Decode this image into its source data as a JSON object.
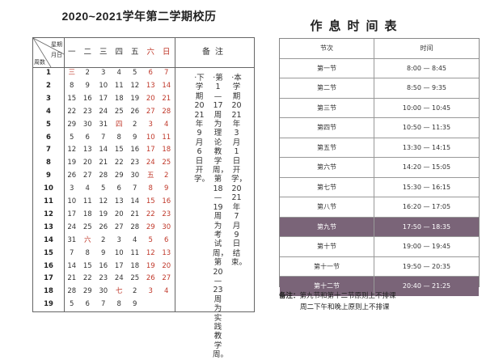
{
  "calendar": {
    "title": "2020~2021学年第二学期校历",
    "corner": {
      "weekday": "星期",
      "month": "月日",
      "week": "周数"
    },
    "weekdays": [
      {
        "label": "一",
        "red": false
      },
      {
        "label": "二",
        "red": false
      },
      {
        "label": "三",
        "red": false
      },
      {
        "label": "四",
        "red": false
      },
      {
        "label": "五",
        "red": false
      },
      {
        "label": "六",
        "red": true
      },
      {
        "label": "日",
        "red": true
      }
    ],
    "note_header": "备注",
    "weeks": [
      {
        "week": "1",
        "days": [
          "三",
          "2",
          "3",
          "4",
          "5",
          "6",
          "7"
        ],
        "red": [
          1,
          0,
          0,
          0,
          0,
          1,
          1
        ]
      },
      {
        "week": "2",
        "days": [
          "8",
          "9",
          "10",
          "11",
          "12",
          "13",
          "14"
        ],
        "red": [
          0,
          0,
          0,
          0,
          0,
          1,
          1
        ]
      },
      {
        "week": "3",
        "days": [
          "15",
          "16",
          "17",
          "18",
          "19",
          "20",
          "21"
        ],
        "red": [
          0,
          0,
          0,
          0,
          0,
          1,
          1
        ]
      },
      {
        "week": "4",
        "days": [
          "22",
          "23",
          "24",
          "25",
          "26",
          "27",
          "28"
        ],
        "red": [
          0,
          0,
          0,
          0,
          0,
          1,
          1
        ]
      },
      {
        "week": "5",
        "days": [
          "29",
          "30",
          "31",
          "四",
          "2",
          "3",
          "4"
        ],
        "red": [
          0,
          0,
          0,
          1,
          0,
          1,
          1
        ]
      },
      {
        "week": "6",
        "days": [
          "5",
          "6",
          "7",
          "8",
          "9",
          "10",
          "11"
        ],
        "red": [
          0,
          0,
          0,
          0,
          0,
          1,
          1
        ]
      },
      {
        "week": "7",
        "days": [
          "12",
          "13",
          "14",
          "15",
          "16",
          "17",
          "18"
        ],
        "red": [
          0,
          0,
          0,
          0,
          0,
          1,
          1
        ]
      },
      {
        "week": "8",
        "days": [
          "19",
          "20",
          "21",
          "22",
          "23",
          "24",
          "25"
        ],
        "red": [
          0,
          0,
          0,
          0,
          0,
          1,
          1
        ]
      },
      {
        "week": "9",
        "days": [
          "26",
          "27",
          "28",
          "29",
          "30",
          "五",
          "2"
        ],
        "red": [
          0,
          0,
          0,
          0,
          0,
          1,
          1
        ]
      },
      {
        "week": "10",
        "days": [
          "3",
          "4",
          "5",
          "6",
          "7",
          "8",
          "9"
        ],
        "red": [
          0,
          0,
          0,
          0,
          0,
          1,
          1
        ]
      },
      {
        "week": "11",
        "days": [
          "10",
          "11",
          "12",
          "13",
          "14",
          "15",
          "16"
        ],
        "red": [
          0,
          0,
          0,
          0,
          0,
          1,
          1
        ]
      },
      {
        "week": "12",
        "days": [
          "17",
          "18",
          "19",
          "20",
          "21",
          "22",
          "23"
        ],
        "red": [
          0,
          0,
          0,
          0,
          0,
          1,
          1
        ]
      },
      {
        "week": "13",
        "days": [
          "24",
          "25",
          "26",
          "27",
          "28",
          "29",
          "30"
        ],
        "red": [
          0,
          0,
          0,
          0,
          0,
          1,
          1
        ]
      },
      {
        "week": "14",
        "days": [
          "31",
          "六",
          "2",
          "3",
          "4",
          "5",
          "6"
        ],
        "red": [
          0,
          1,
          0,
          0,
          0,
          1,
          1
        ]
      },
      {
        "week": "15",
        "days": [
          "7",
          "8",
          "9",
          "10",
          "11",
          "12",
          "13"
        ],
        "red": [
          0,
          0,
          0,
          0,
          0,
          1,
          1
        ]
      },
      {
        "week": "16",
        "days": [
          "14",
          "15",
          "16",
          "17",
          "18",
          "19",
          "20"
        ],
        "red": [
          0,
          0,
          0,
          0,
          0,
          1,
          1
        ]
      },
      {
        "week": "17",
        "days": [
          "21",
          "22",
          "23",
          "24",
          "25",
          "26",
          "27"
        ],
        "red": [
          0,
          0,
          0,
          0,
          0,
          1,
          1
        ]
      },
      {
        "week": "18",
        "days": [
          "28",
          "29",
          "30",
          "七",
          "2",
          "3",
          "4"
        ],
        "red": [
          0,
          0,
          0,
          1,
          0,
          1,
          1
        ]
      },
      {
        "week": "19",
        "days": [
          "5",
          "6",
          "7",
          "8",
          "9",
          "",
          ""
        ],
        "red": [
          0,
          0,
          0,
          0,
          0,
          0,
          0
        ]
      }
    ],
    "notes": [
      "·本学期2021年3月1日开学，2021年7月9日结束。",
      "·第1—17周为理论教学周，第18—19周为考试周，第20—23周为实践教学周。",
      "·下学期2021年9月6日开学。"
    ]
  },
  "schedule": {
    "title": "作息时间表",
    "headers": [
      "节次",
      "时间"
    ],
    "rows": [
      {
        "period": "第一节",
        "time": "8:00 — 8:45",
        "hl": false
      },
      {
        "period": "第二节",
        "time": "8:50 — 9:35",
        "hl": false
      },
      {
        "period": "第三节",
        "time": "10:00 — 10:45",
        "hl": false
      },
      {
        "period": "第四节",
        "time": "10:50 — 11:35",
        "hl": false
      },
      {
        "period": "第五节",
        "time": "13:30 — 14:15",
        "hl": false
      },
      {
        "period": "第六节",
        "time": "14:20 — 15:05",
        "hl": false
      },
      {
        "period": "第七节",
        "time": "15:30 — 16:15",
        "hl": false
      },
      {
        "period": "第八节",
        "time": "16:20 — 17:05",
        "hl": false
      },
      {
        "period": "第九节",
        "time": "17:50 — 18:35",
        "hl": true
      },
      {
        "period": "第十节",
        "time": "19:00 — 19:45",
        "hl": false
      },
      {
        "period": "第十一节",
        "time": "19:50 — 20:35",
        "hl": false
      },
      {
        "period": "第十二节",
        "time": "20:40 — 21:25",
        "hl": true
      }
    ],
    "remark_label": "备注：",
    "remark_line1": "第九节和第十二节原则上不排课",
    "remark_line2": "周二下午和晚上原则上不排课",
    "highlight_color": "#7a6478"
  }
}
